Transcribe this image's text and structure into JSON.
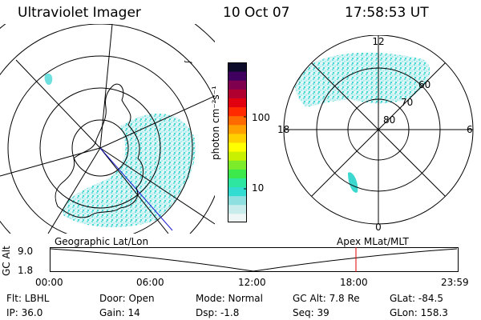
{
  "header": {
    "instrument": "Ultraviolet Imager",
    "date": "10 Oct 07",
    "time": "17:58:53 UT"
  },
  "left_panel": {
    "caption": "Geographic Lat/Lon"
  },
  "right_panel": {
    "caption": "Apex MLat/MLT",
    "lat_labels": [
      "80",
      "70",
      "60"
    ],
    "mlt_labels": [
      "12",
      "18",
      "6",
      "0"
    ]
  },
  "colorbar": {
    "unit_label": "photon cm⁻²s⁻¹",
    "tick_labels": [
      "100",
      "10"
    ],
    "colors": [
      "#eef6f6",
      "#c8ecec",
      "#8ee0e0",
      "#33dcd0",
      "#2ee6a0",
      "#3ce84a",
      "#7cec2a",
      "#c8f000",
      "#ffff00",
      "#ffd000",
      "#ffa000",
      "#ff6a00",
      "#ff2a00",
      "#e00010",
      "#b00030",
      "#800050",
      "#400060",
      "#0c0c2a"
    ]
  },
  "altitude_plot": {
    "ylabel": "GC Alt",
    "y_ticks": [
      "9.0",
      "1.8"
    ],
    "x_ticks": [
      "00:00",
      "06:00",
      "12:00",
      "18:00",
      "23:59"
    ],
    "current_time_hours": 18.0,
    "marker_color": "#e00000"
  },
  "footer": {
    "filter": "Flt: LBHL",
    "ip": "IP: 36.0",
    "door": "Door: Open",
    "gain": "Gain: 14",
    "mode": "Mode: Normal",
    "dsp": "Dsp:    -1.8",
    "gc_alt": "GC Alt: 7.8 Re",
    "seq": "Seq: 39",
    "glat": "GLat: -84.5",
    "glon": "GLon: 158.3"
  }
}
